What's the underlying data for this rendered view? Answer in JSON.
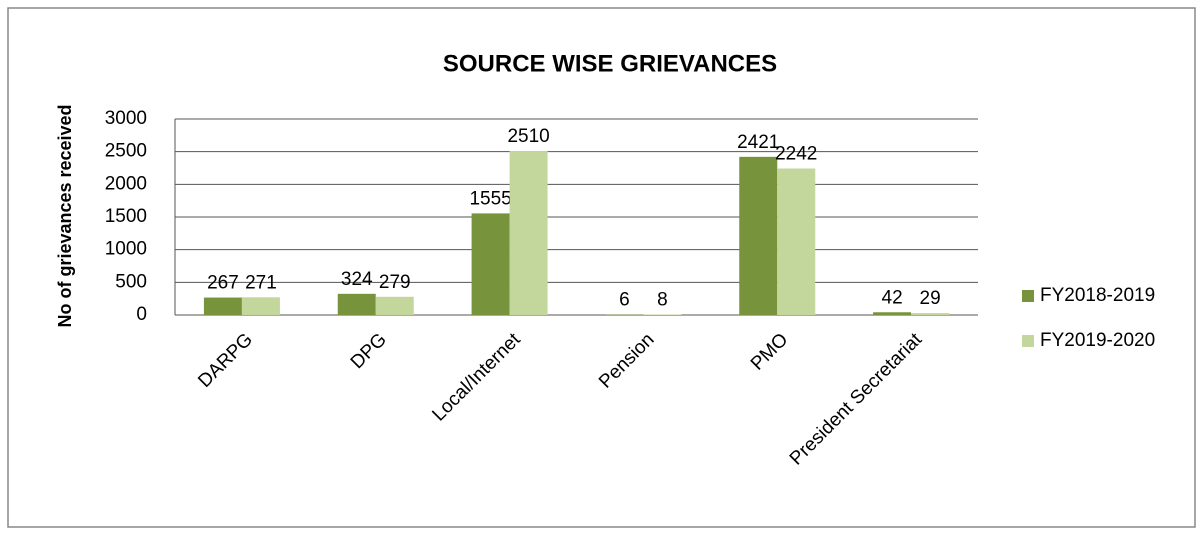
{
  "chart_data": {
    "type": "bar",
    "title": "SOURCE WISE GRIEVANCES",
    "y_label": "No of grievances received",
    "categories": [
      "DARPG",
      "DPG",
      "Local/Internet",
      "Pension",
      "PMO",
      "President Secretariat"
    ],
    "series": [
      {
        "name": "FY2018-2019",
        "color": "#77933c",
        "values": [
          267,
          324,
          1555,
          6,
          2421,
          42
        ]
      },
      {
        "name": "FY2019-2020",
        "color": "#c3d69b",
        "values": [
          271,
          279,
          2510,
          8,
          2242,
          29
        ]
      }
    ],
    "ylim": [
      0,
      3000
    ],
    "yticks": [
      0,
      500,
      1000,
      1500,
      2000,
      2500,
      3000
    ],
    "grid": true,
    "legend": "right"
  }
}
